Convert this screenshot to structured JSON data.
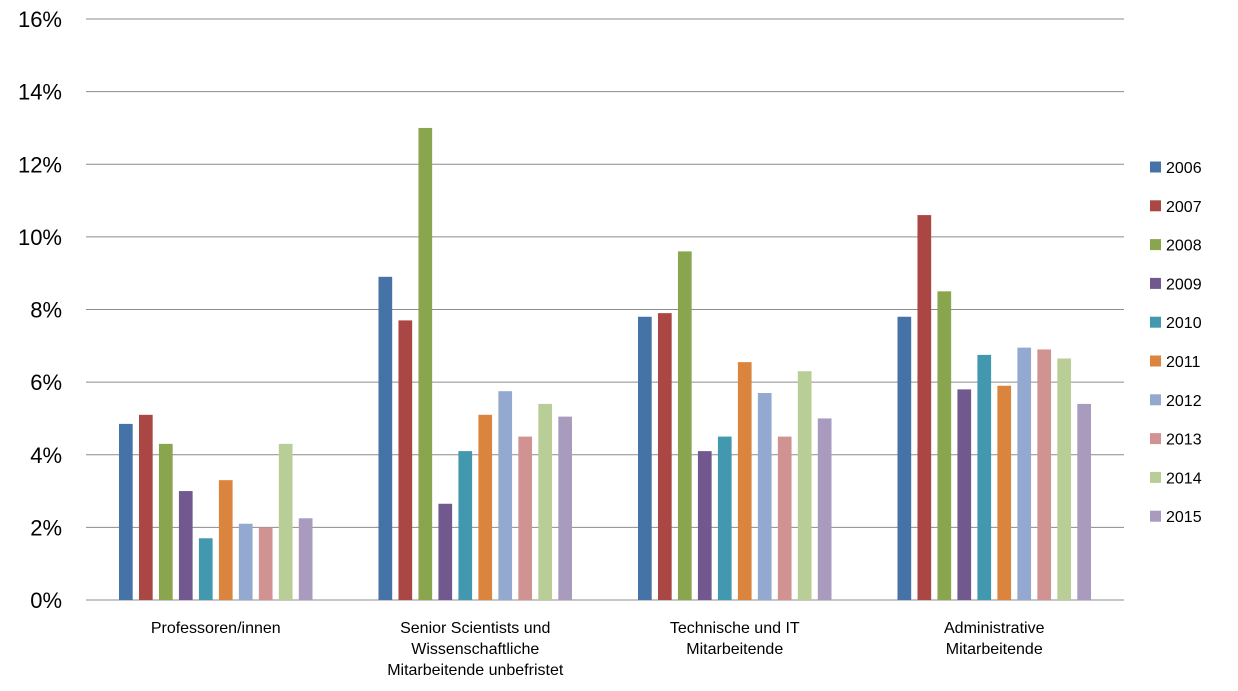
{
  "chart_data": {
    "type": "bar",
    "ylim": [
      0,
      16
    ],
    "y_ticks": [
      {
        "value": 0,
        "label": "0%"
      },
      {
        "value": 2,
        "label": "2%"
      },
      {
        "value": 4,
        "label": "4%"
      },
      {
        "value": 6,
        "label": "6%"
      },
      {
        "value": 8,
        "label": "8%"
      },
      {
        "value": 10,
        "label": "10%"
      },
      {
        "value": 12,
        "label": "12%"
      },
      {
        "value": 14,
        "label": "14%"
      },
      {
        "value": 16,
        "label": "16%"
      }
    ],
    "grid": true,
    "legend_position": "right",
    "categories": [
      [
        "Professoren/innen"
      ],
      [
        "Senior Scientists und",
        "Wissenschaftliche",
        "Mitarbeitende unbefristet"
      ],
      [
        "Technische und IT",
        "Mitarbeitende"
      ],
      [
        "Administrative",
        "Mitarbeitende"
      ]
    ],
    "series": [
      {
        "name": "2006",
        "color": "#4572A7",
        "values": [
          4.85,
          8.9,
          7.8,
          7.8
        ]
      },
      {
        "name": "2007",
        "color": "#AA4643",
        "values": [
          5.1,
          7.7,
          7.9,
          10.6
        ]
      },
      {
        "name": "2008",
        "color": "#89A54E",
        "values": [
          4.3,
          13.0,
          9.6,
          8.5
        ]
      },
      {
        "name": "2009",
        "color": "#71588F",
        "values": [
          3.0,
          2.65,
          4.1,
          5.8
        ]
      },
      {
        "name": "2010",
        "color": "#4198AF",
        "values": [
          1.7,
          4.1,
          4.5,
          6.75
        ]
      },
      {
        "name": "2011",
        "color": "#DB843D",
        "values": [
          3.3,
          5.1,
          6.55,
          5.9
        ]
      },
      {
        "name": "2012",
        "color": "#93A9CF",
        "values": [
          2.1,
          5.75,
          5.7,
          6.95
        ]
      },
      {
        "name": "2013",
        "color": "#D19392",
        "values": [
          2.0,
          4.5,
          4.5,
          6.9
        ]
      },
      {
        "name": "2014",
        "color": "#B9CD96",
        "values": [
          4.3,
          5.4,
          6.3,
          6.65
        ]
      },
      {
        "name": "2015",
        "color": "#A99BBD",
        "values": [
          2.25,
          5.05,
          5.0,
          5.4
        ]
      }
    ]
  }
}
